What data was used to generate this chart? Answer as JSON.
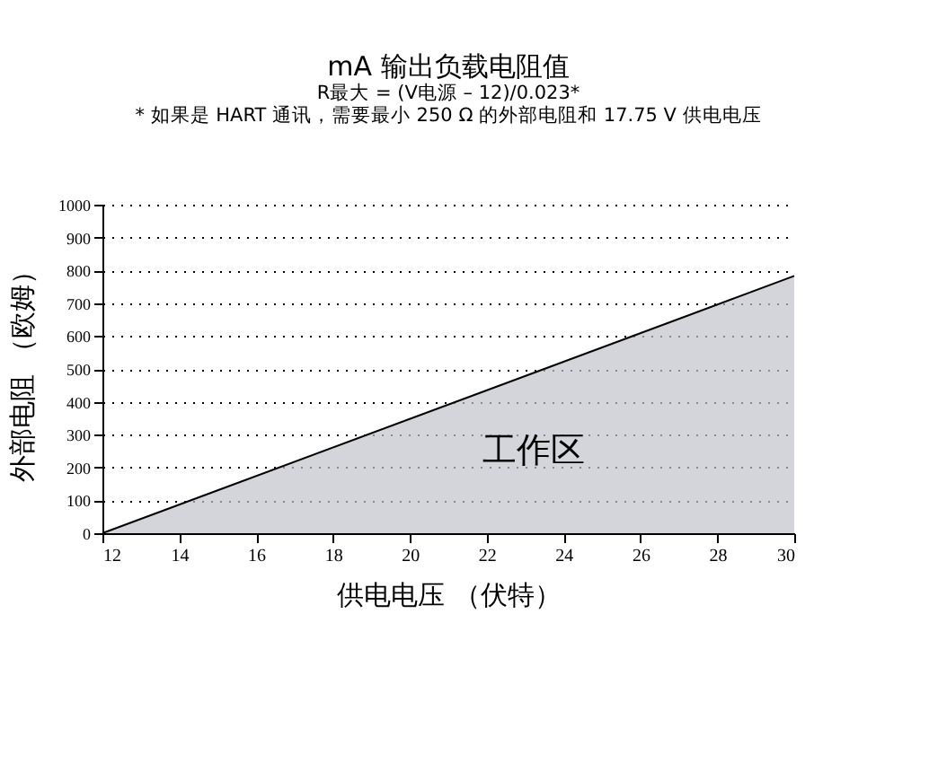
{
  "chart_data": {
    "type": "area",
    "title": "mA 输出负载电阻值",
    "subtitle": [
      "R最大 = (V电源 – 12)/0.023*",
      "* 如果是 HART 通讯，需要最小 250 Ω 的外部电阻和 17.75 V 供电电压"
    ],
    "xlabel": "供电电压 （伏特）",
    "ylabel": "外部电阻 （欧姆）",
    "x": [
      12,
      30
    ],
    "series": [
      {
        "color": "#c0c3ca",
        "values": [
          0,
          783
        ]
      }
    ],
    "xlim": [
      12,
      30
    ],
    "xticks": [
      12,
      14,
      16,
      18,
      20,
      22,
      24,
      26,
      28,
      30
    ],
    "ylim": [
      0,
      1000
    ],
    "yticks": [
      0,
      100,
      200,
      300,
      400,
      500,
      600,
      700,
      800,
      900,
      1000
    ],
    "grid": "y",
    "annotations": [
      "工作区"
    ]
  }
}
